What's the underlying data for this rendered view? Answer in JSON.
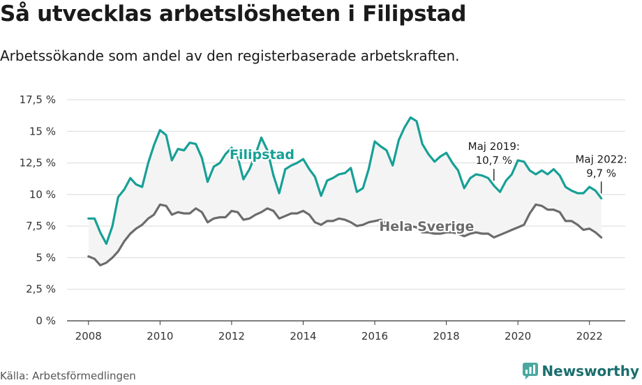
{
  "header": {
    "title": "Så utvecklas arbetslösheten i Filipstad",
    "subtitle": "Arbetssökande som andel av den registerbaserade arbetskraften."
  },
  "footer": {
    "source": "Källa: Arbetsförmedlingen",
    "brand": "Newsworthy"
  },
  "colors": {
    "filipstad": "#16a096",
    "sverige": "#6b6b6b",
    "band": "#f4f4f4",
    "grid": "#d9d9d9"
  },
  "chart_data": {
    "type": "line",
    "title": "Så utvecklas arbetslösheten i Filipstad",
    "subtitle": "Arbetssökande som andel av den registerbaserade arbetskraften.",
    "xlabel": "",
    "ylabel": "",
    "xlim": [
      2007.4,
      2023.0
    ],
    "ylim": [
      0,
      17.5
    ],
    "x_ticks": [
      2008,
      2010,
      2012,
      2014,
      2016,
      2018,
      2020,
      2022
    ],
    "x_tick_labels": [
      "2008",
      "2010",
      "2012",
      "2014",
      "2016",
      "2018",
      "2020",
      "2022"
    ],
    "y_ticks": [
      0,
      2.5,
      5,
      7.5,
      10,
      12.5,
      15,
      17.5
    ],
    "y_tick_labels": [
      "0 %",
      "2,5 %",
      "5 %",
      "7,5 %",
      "10 %",
      "12,5 %",
      "15 %",
      "17,5 %"
    ],
    "grid": "horizontal",
    "legend": "inline-labels",
    "series": [
      {
        "name": "Filipstad",
        "x": [
          2008.0,
          2008.17,
          2008.33,
          2008.5,
          2008.67,
          2008.83,
          2009.0,
          2009.17,
          2009.33,
          2009.5,
          2009.67,
          2009.83,
          2010.0,
          2010.17,
          2010.33,
          2010.5,
          2010.67,
          2010.83,
          2011.0,
          2011.17,
          2011.33,
          2011.5,
          2011.67,
          2011.83,
          2012.0,
          2012.17,
          2012.33,
          2012.5,
          2012.67,
          2012.83,
          2013.0,
          2013.17,
          2013.33,
          2013.5,
          2013.67,
          2013.83,
          2014.0,
          2014.17,
          2014.33,
          2014.5,
          2014.67,
          2014.83,
          2015.0,
          2015.17,
          2015.33,
          2015.5,
          2015.67,
          2015.83,
          2016.0,
          2016.17,
          2016.33,
          2016.5,
          2016.67,
          2016.83,
          2017.0,
          2017.17,
          2017.33,
          2017.5,
          2017.67,
          2017.83,
          2018.0,
          2018.17,
          2018.33,
          2018.5,
          2018.67,
          2018.83,
          2019.0,
          2019.17,
          2019.33,
          2019.5,
          2019.67,
          2019.83,
          2020.0,
          2020.17,
          2020.33,
          2020.5,
          2020.67,
          2020.83,
          2021.0,
          2021.17,
          2021.33,
          2021.5,
          2021.67,
          2021.83,
          2022.0,
          2022.17,
          2022.33
        ],
        "values": [
          8.1,
          8.1,
          7.0,
          6.1,
          7.5,
          9.8,
          10.4,
          11.3,
          10.8,
          10.6,
          12.5,
          13.9,
          15.1,
          14.7,
          12.7,
          13.6,
          13.5,
          14.1,
          14.0,
          12.9,
          11.0,
          12.2,
          12.5,
          13.2,
          13.7,
          13.0,
          11.2,
          12.0,
          13.2,
          14.5,
          13.5,
          11.5,
          10.1,
          12.0,
          12.3,
          12.5,
          12.8,
          12.0,
          11.4,
          9.9,
          11.1,
          11.3,
          11.6,
          11.7,
          12.1,
          10.2,
          10.5,
          12.0,
          14.2,
          13.8,
          13.5,
          12.3,
          14.3,
          15.3,
          16.1,
          15.8,
          14.0,
          13.2,
          12.6,
          13.0,
          13.3,
          12.5,
          11.9,
          10.5,
          11.3,
          11.6,
          11.5,
          11.3,
          10.7,
          10.2,
          11.1,
          11.6,
          12.7,
          12.6,
          11.9,
          11.6,
          11.9,
          11.6,
          12.0,
          11.5,
          10.6,
          10.3,
          10.1,
          10.1,
          10.6,
          10.3,
          9.7
        ]
      },
      {
        "name": "Hela Sverige",
        "x": [
          2008.0,
          2008.17,
          2008.33,
          2008.5,
          2008.67,
          2008.83,
          2009.0,
          2009.17,
          2009.33,
          2009.5,
          2009.67,
          2009.83,
          2010.0,
          2010.17,
          2010.33,
          2010.5,
          2010.67,
          2010.83,
          2011.0,
          2011.17,
          2011.33,
          2011.5,
          2011.67,
          2011.83,
          2012.0,
          2012.17,
          2012.33,
          2012.5,
          2012.67,
          2012.83,
          2013.0,
          2013.17,
          2013.33,
          2013.5,
          2013.67,
          2013.83,
          2014.0,
          2014.17,
          2014.33,
          2014.5,
          2014.67,
          2014.83,
          2015.0,
          2015.17,
          2015.33,
          2015.5,
          2015.67,
          2015.83,
          2016.0,
          2016.17,
          2016.33,
          2016.5,
          2016.67,
          2016.83,
          2017.0,
          2017.17,
          2017.33,
          2017.5,
          2017.67,
          2017.83,
          2018.0,
          2018.17,
          2018.33,
          2018.5,
          2018.67,
          2018.83,
          2019.0,
          2019.17,
          2019.33,
          2019.5,
          2019.67,
          2019.83,
          2020.0,
          2020.17,
          2020.33,
          2020.5,
          2020.67,
          2020.83,
          2021.0,
          2021.17,
          2021.33,
          2021.5,
          2021.67,
          2021.83,
          2022.0,
          2022.17,
          2022.33
        ],
        "values": [
          5.1,
          4.9,
          4.4,
          4.6,
          5.0,
          5.5,
          6.3,
          6.9,
          7.3,
          7.6,
          8.1,
          8.4,
          9.2,
          9.1,
          8.4,
          8.6,
          8.5,
          8.5,
          8.9,
          8.6,
          7.8,
          8.1,
          8.2,
          8.2,
          8.7,
          8.6,
          8.0,
          8.1,
          8.4,
          8.6,
          8.9,
          8.7,
          8.1,
          8.3,
          8.5,
          8.5,
          8.7,
          8.4,
          7.8,
          7.6,
          7.9,
          7.9,
          8.1,
          8.0,
          7.8,
          7.5,
          7.6,
          7.8,
          7.9,
          8.0,
          7.7,
          7.3,
          7.3,
          7.4,
          7.5,
          7.4,
          7.0,
          7.0,
          6.9,
          6.9,
          7.0,
          7.0,
          6.9,
          6.7,
          6.9,
          7.0,
          6.9,
          6.9,
          6.6,
          6.8,
          7.0,
          7.2,
          7.4,
          7.6,
          8.5,
          9.2,
          9.1,
          8.8,
          8.8,
          8.6,
          7.9,
          7.9,
          7.6,
          7.2,
          7.3,
          7.0,
          6.6
        ]
      }
    ],
    "series_labels": [
      {
        "text": "Filipstad",
        "x": 2012.85,
        "y": 13.2,
        "series": "Filipstad"
      },
      {
        "text": "Hela Sverige",
        "x": 2017.45,
        "y": 7.5,
        "series": "Hela Sverige"
      }
    ],
    "annotations": [
      {
        "line1": "Maj 2019:",
        "line2": "10,7 %",
        "x": 2019.33,
        "y": 10.7
      },
      {
        "line1": "Maj 2022:",
        "line2": "9,7 %",
        "x": 2022.33,
        "y": 9.7
      }
    ]
  }
}
